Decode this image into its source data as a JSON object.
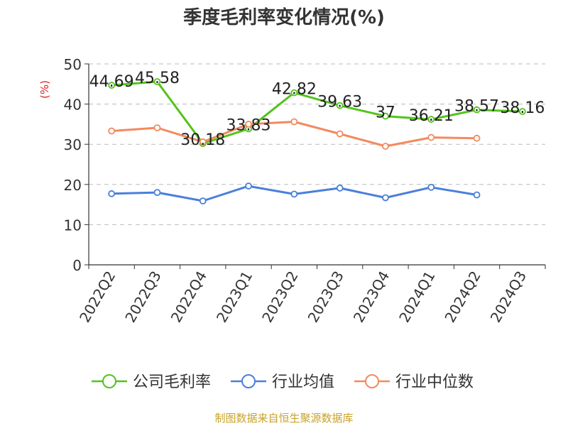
{
  "chart_data": {
    "type": "line",
    "title": "季度毛利率变化情况(%)",
    "ylabel": "(%)",
    "xlabel": "",
    "categories": [
      "2022Q2",
      "2022Q3",
      "2022Q4",
      "2023Q1",
      "2023Q2",
      "2023Q3",
      "2023Q4",
      "2024Q1",
      "2024Q2",
      "2024Q3"
    ],
    "yticks": [
      0,
      10,
      20,
      30,
      40,
      50
    ],
    "ylim": [
      0,
      50
    ],
    "grid": true,
    "legend_position": "bottom",
    "series": [
      {
        "name": "公司毛利率",
        "color": "#52c41a",
        "values": [
          44.69,
          45.58,
          30.18,
          33.83,
          42.82,
          39.63,
          37,
          36.21,
          38.57,
          38.16
        ],
        "labels": [
          "44.69",
          "45.58",
          "30.18",
          "33.83",
          "42.82",
          "39.63",
          "37",
          "36.21",
          "38.57",
          "38.16"
        ]
      },
      {
        "name": "行业均值",
        "color": "#4a7fdc",
        "values": [
          17.7,
          18.0,
          15.9,
          19.6,
          17.6,
          19.1,
          16.7,
          19.3,
          17.4,
          null
        ]
      },
      {
        "name": "行业中位数",
        "color": "#f4895f",
        "values": [
          33.3,
          34.1,
          30.6,
          35.0,
          35.6,
          32.6,
          29.5,
          31.7,
          31.5,
          null
        ]
      }
    ],
    "source": "制图数据来自恒生聚源数据库"
  },
  "colors": {
    "title": "#333333",
    "axis": "#333333",
    "grid": "#bbbbbb",
    "ylabel": "#e02020",
    "source": "#c9a227"
  }
}
